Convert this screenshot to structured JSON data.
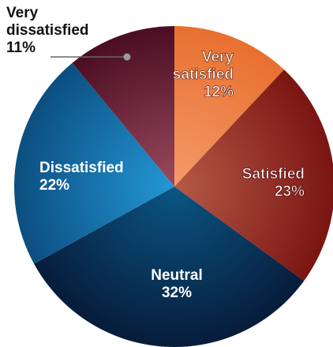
{
  "chart_data": {
    "type": "pie",
    "slices": [
      {
        "label": [
          "Very",
          "satisfied"
        ],
        "value": 12,
        "value_label": "12%",
        "color": "#f59a6a",
        "edge": "#e8702f"
      },
      {
        "label": [
          "Satisfied"
        ],
        "value": 23,
        "value_label": "23%",
        "color": "#b65a47",
        "edge": "#7a1512"
      },
      {
        "label": [
          "Neutral"
        ],
        "value": 32,
        "value_label": "32%",
        "color": "#0b5684",
        "edge": "#071c3b"
      },
      {
        "label": [
          "Dissatisfied"
        ],
        "value": 22,
        "value_label": "22%",
        "color": "#2398d6",
        "edge": "#0c4e80"
      },
      {
        "label": [
          "Very",
          "dissatisfied"
        ],
        "value": 11,
        "value_label": "11%",
        "color": "#9b4a5e",
        "edge": "#4a0d22"
      }
    ],
    "start_at": "top",
    "direction": "clockwise",
    "callout_slice": "Very dissatisfied"
  }
}
